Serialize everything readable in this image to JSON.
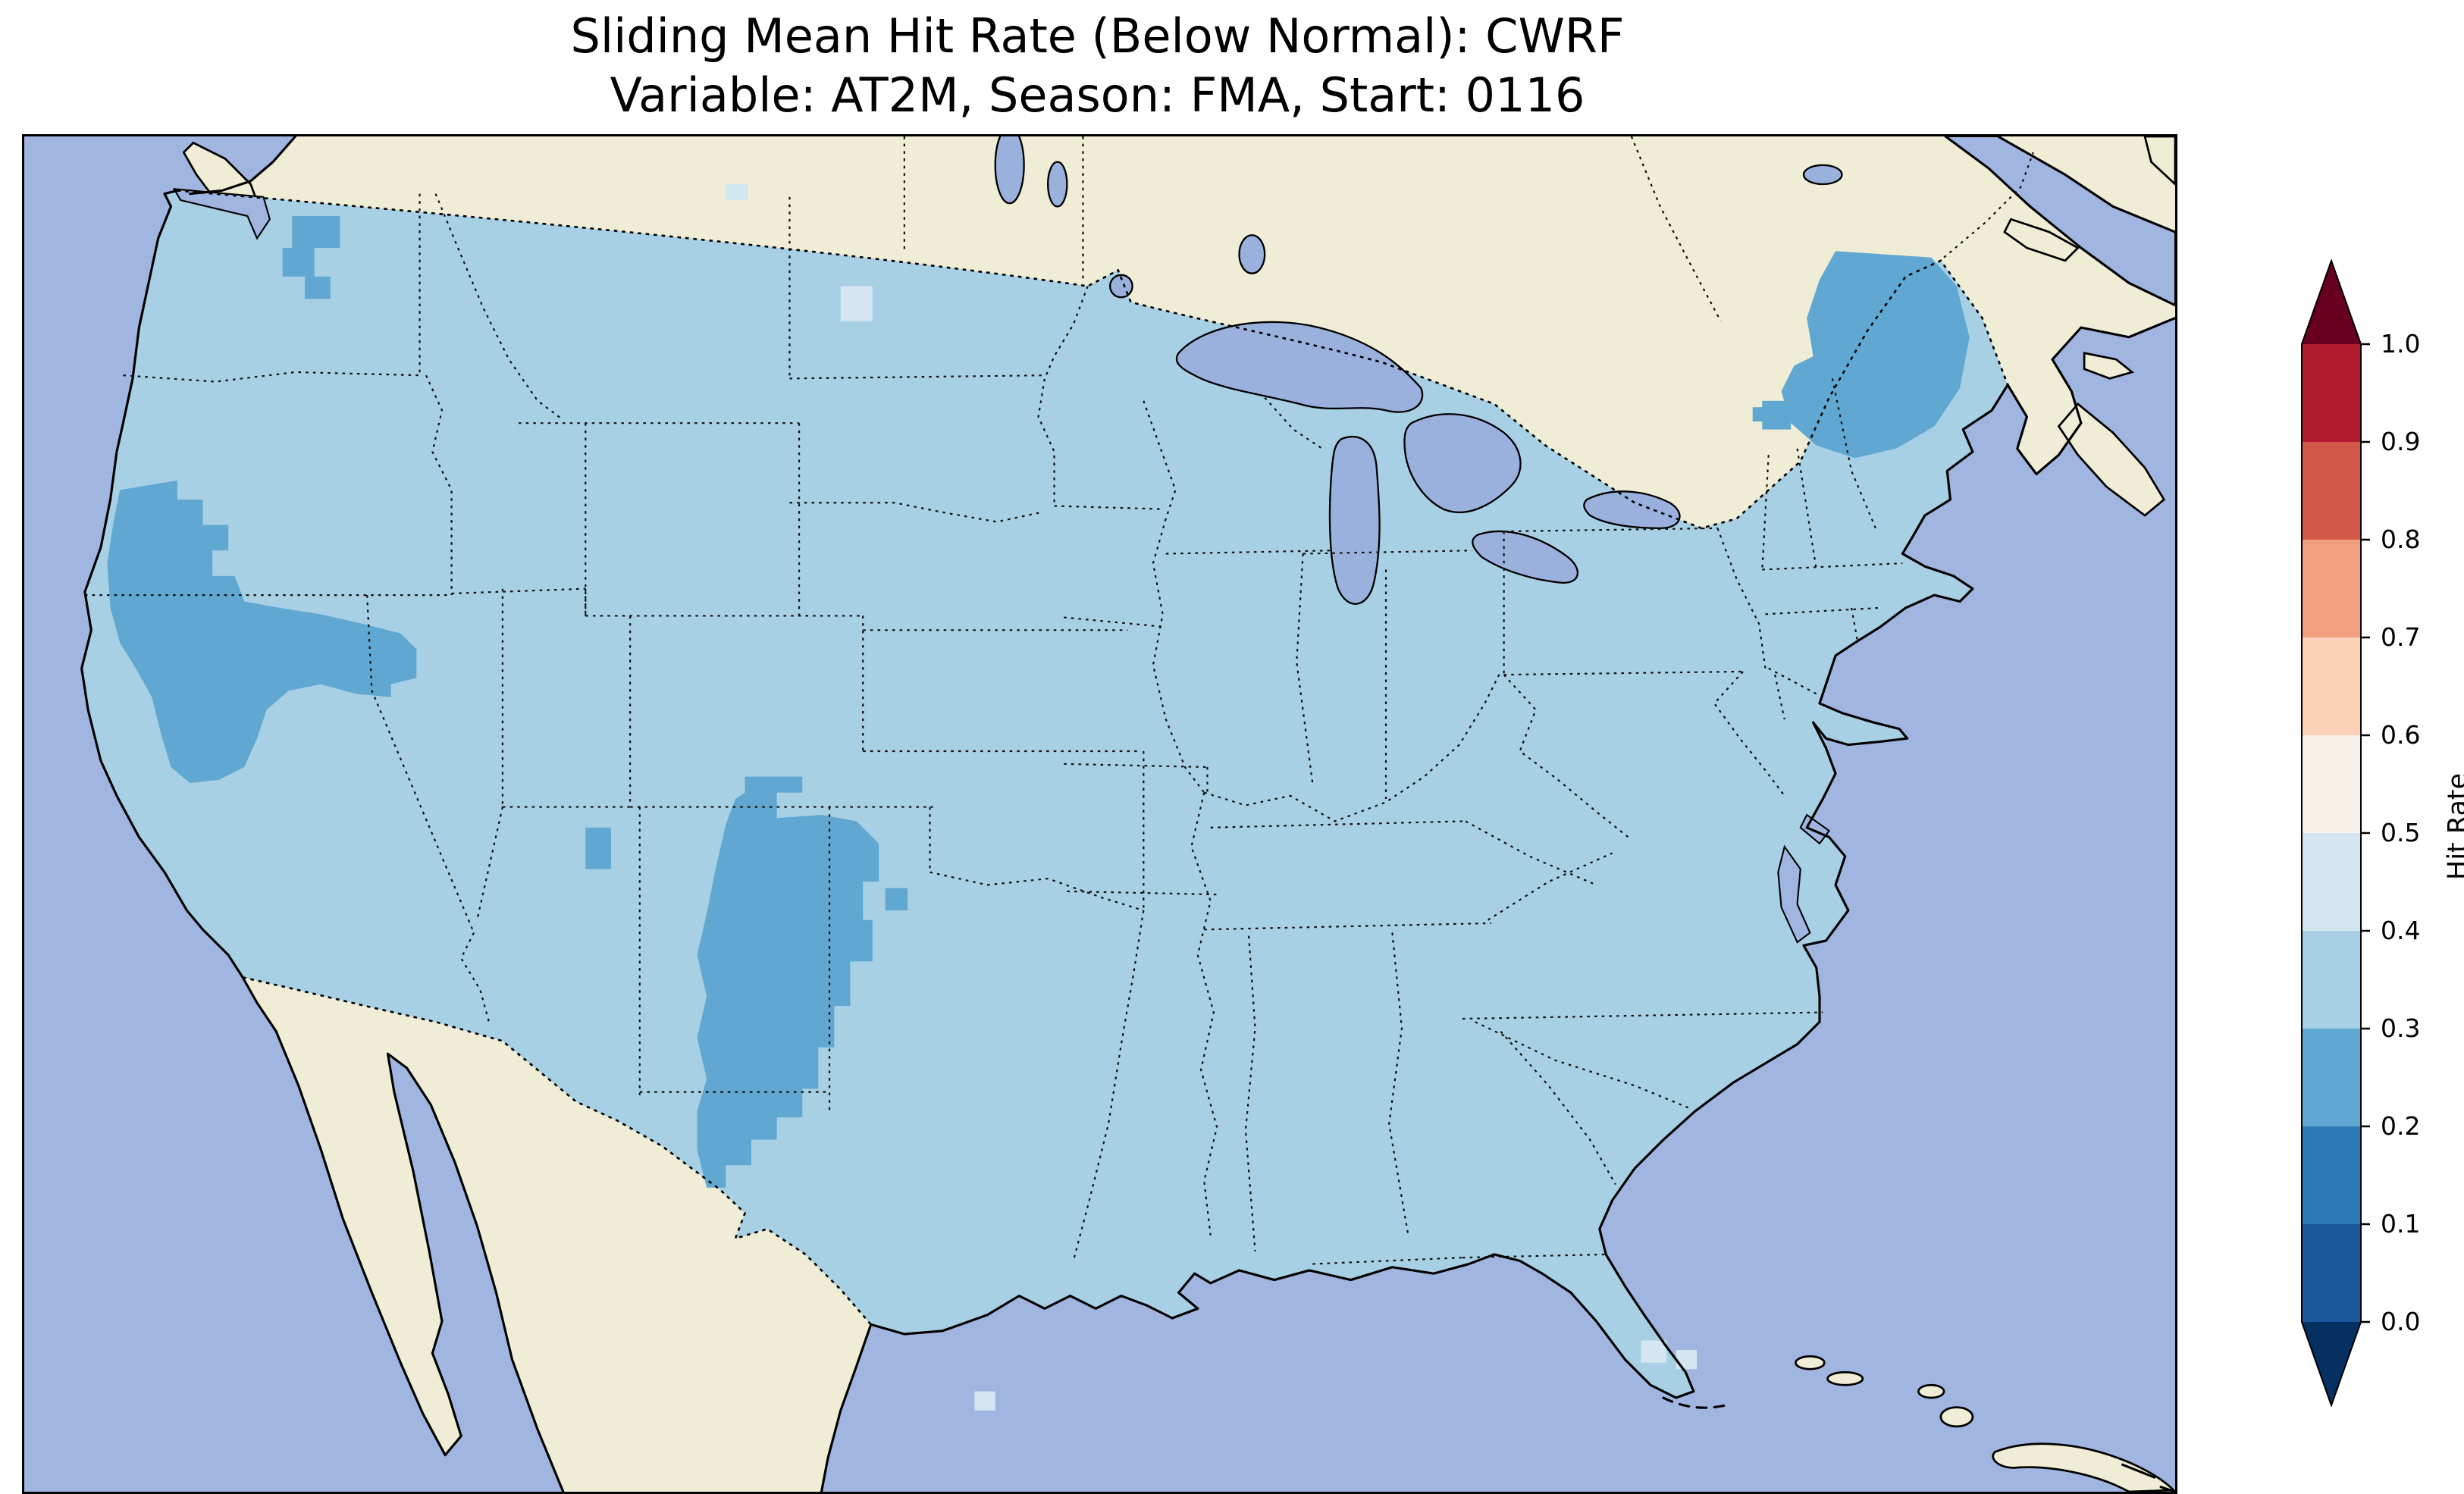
{
  "figure": {
    "title_line1": "Sliding Mean Hit Rate (Below Normal): CWRF",
    "title_line2": "Variable: AT2M, Season: FMA, Start: 0116"
  },
  "colorbar": {
    "label": "Hit Rate",
    "tick_labels": [
      "1.0",
      "0.9",
      "0.8",
      "0.7",
      "0.6",
      "0.5",
      "0.4",
      "0.3",
      "0.2",
      "0.1",
      "0.0"
    ],
    "extend": "both",
    "bin_colors_bottom_to_top": [
      "#1a5899",
      "#2d79b5",
      "#60a8d1",
      "#a7d0e4",
      "#d4e6f1",
      "#f7f1ea",
      "#fbd2b5",
      "#f0a07e",
      "#d25849",
      "#b01b2e"
    ],
    "extend_low_color": "#053061",
    "extend_high_color": "#67001f"
  },
  "colors": {
    "map": {
      "ocean": "#a0b5e0",
      "land": "#f0edd7",
      "lake": "#9ab0dd",
      "us-fill": "#a7d0e4",
      "cell-dark": "#60a8d1",
      "cell-light": "#d4e6f1"
    }
  },
  "chart_data": {
    "type": "heatmap",
    "title": "Sliding Mean Hit Rate (Below Normal): CWRF",
    "subtitle": "Variable: AT2M, Season: FMA, Start: 0116",
    "model": "CWRF",
    "variable": "AT2M",
    "season": "FMA",
    "start": "0116",
    "category": "Below Normal",
    "region": "Contiguous United States with surrounding Canada, Mexico, Atlantic and Pacific oceans",
    "colorbar_label": "Hit Rate",
    "colorbar_ticks": [
      0.0,
      0.1,
      0.2,
      0.3,
      0.4,
      0.5,
      0.6,
      0.7,
      0.8,
      0.9,
      1.0
    ],
    "colorbar_range": [
      0.0,
      1.0
    ],
    "colormap": "RdBu_r discrete (10 bins, extended triangles both ends)",
    "legend_position": "right vertical colorbar",
    "grid": false,
    "regions": [
      {
        "area": "Most of the contiguous U.S.",
        "hit_rate_bin": "0.3-0.4"
      },
      {
        "area": "Central California coast ranges / Sierra Nevada / western Nevada",
        "hit_rate_bin": "0.2-0.3"
      },
      {
        "area": "Central New Mexico south into far-west Texas (Rio Grande / Big Bend)",
        "hit_rate_bin": "0.2-0.3"
      },
      {
        "area": "Northern New England (Maine, New Hampshire, Vermont)",
        "hit_rate_bin": "0.2-0.3"
      },
      {
        "area": "Washington Cascades (scattered cells)",
        "hit_rate_bin": "0.2-0.3"
      },
      {
        "area": "Four Corners vicinity (isolated cell)",
        "hit_rate_bin": "0.2-0.3"
      },
      {
        "area": "North-central Montana border cell, offshore southwest Florida cells, south Texas coast cell",
        "hit_rate_bin": "0.4-0.5"
      },
      {
        "area": "Canada and Mexico",
        "hit_rate_bin": "no data (land color)"
      }
    ]
  }
}
